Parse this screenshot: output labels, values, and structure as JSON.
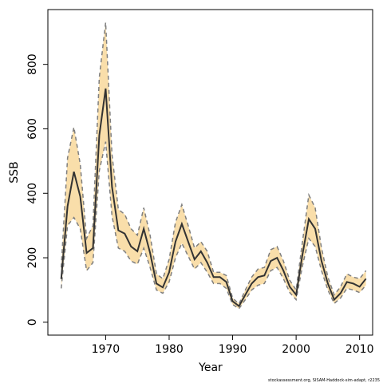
{
  "chart_data": {
    "type": "line",
    "x_label": "Year",
    "y_label": "SSB",
    "footnote": "stockassessment.org, SISAM-Haddock-sim-adapt, r2235",
    "x": [
      1963,
      1964,
      1965,
      1966,
      1967,
      1968,
      1969,
      1970,
      1971,
      1972,
      1973,
      1974,
      1975,
      1976,
      1977,
      1978,
      1979,
      1980,
      1981,
      1982,
      1983,
      1984,
      1985,
      1986,
      1987,
      1988,
      1989,
      1990,
      1991,
      1992,
      1993,
      1994,
      1995,
      1996,
      1997,
      1998,
      1999,
      2000,
      2001,
      2002,
      2003,
      2004,
      2005,
      2006,
      2007,
      2008,
      2009,
      2010,
      2011
    ],
    "series": [
      {
        "color": "#333333",
        "band_color": "#f9deaa",
        "bound_color": "#7f7f7f",
        "values": [
          134,
          360,
          467,
          390,
          215,
          230,
          580,
          725,
          420,
          285,
          275,
          235,
          220,
          290,
          215,
          120,
          108,
          155,
          250,
          305,
          250,
          195,
          220,
          185,
          140,
          140,
          125,
          65,
          50,
          85,
          120,
          140,
          145,
          190,
          200,
          160,
          110,
          85,
          210,
          320,
          290,
          190,
          120,
          70,
          90,
          125,
          120,
          110,
          135
        ],
        "upper": [
          170,
          510,
          605,
          490,
          260,
          300,
          760,
          930,
          520,
          350,
          335,
          290,
          270,
          355,
          270,
          150,
          135,
          195,
          310,
          365,
          300,
          230,
          250,
          220,
          155,
          155,
          145,
          75,
          57,
          100,
          140,
          165,
          170,
          225,
          235,
          190,
          130,
          100,
          250,
          395,
          355,
          230,
          140,
          85,
          110,
          150,
          140,
          135,
          160
        ],
        "lower": [
          105,
          300,
          325,
          290,
          160,
          185,
          470,
          560,
          330,
          230,
          220,
          190,
          180,
          230,
          170,
          100,
          90,
          125,
          200,
          245,
          205,
          165,
          185,
          155,
          120,
          120,
          105,
          55,
          42,
          70,
          100,
          115,
          120,
          160,
          170,
          135,
          92,
          70,
          175,
          260,
          235,
          160,
          100,
          58,
          75,
          105,
          100,
          92,
          115
        ]
      }
    ],
    "xlim": [
      1960.9,
      2012.05
    ],
    "ylim": [
      -40,
      970
    ],
    "xticks": [
      1970,
      1980,
      1990,
      2000,
      2010
    ],
    "yticks": [
      0,
      200,
      400,
      600,
      800
    ]
  }
}
